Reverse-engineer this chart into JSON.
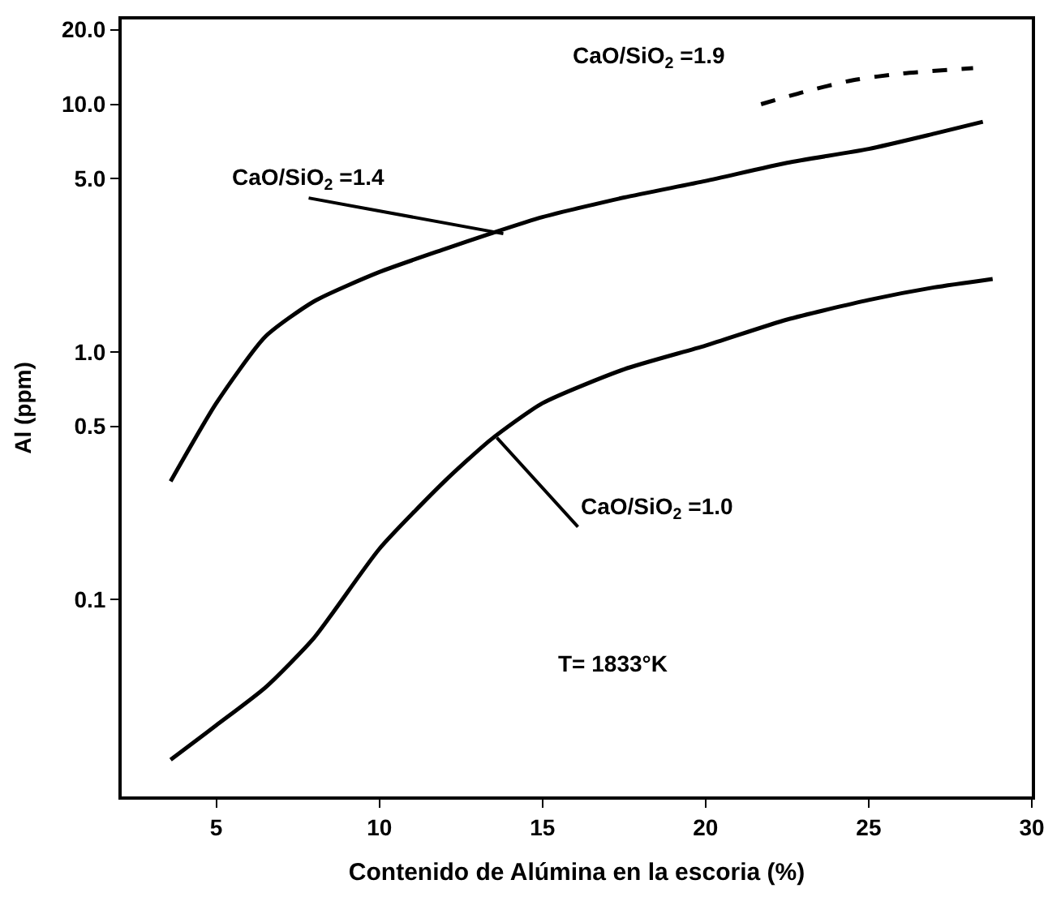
{
  "chart_data": {
    "type": "line",
    "xlabel": "Contenido de Alúmina en la escoria (%)",
    "ylabel": "Al (ppm)",
    "log": "y",
    "legend": false,
    "marker": "none",
    "xlim": [
      2.1,
      30
    ],
    "xticks": [
      5,
      10,
      15,
      20,
      25,
      30
    ],
    "ylim": [
      0.016,
      22
    ],
    "yticks": [
      0.1,
      0.5,
      {
        "value": 1,
        "label": "1.0"
      },
      {
        "value": 5,
        "label": "5.0"
      },
      {
        "value": 10,
        "label": "10.0"
      },
      {
        "value": 20,
        "label": "20.0"
      }
    ],
    "series": [
      {
        "color": "#000000",
        "line_style": "solid",
        "x": [
          3.6,
          5,
          6.5,
          8,
          10,
          12,
          13.4,
          15,
          17.5,
          20,
          22.5,
          25,
          27,
          28.8
        ],
        "values": [
          0.0225,
          0.031,
          0.044,
          0.07,
          0.16,
          0.3,
          0.44,
          0.62,
          0.85,
          1.06,
          1.35,
          1.62,
          1.82,
          1.97
        ]
      },
      {
        "color": "#000000",
        "line_style": "solid",
        "x": [
          3.6,
          5,
          6.5,
          8,
          10,
          12,
          13.4,
          15,
          17.5,
          20,
          22.5,
          25,
          27,
          28.5
        ],
        "values": [
          0.3,
          0.62,
          1.15,
          1.6,
          2.1,
          2.6,
          3.0,
          3.5,
          4.2,
          4.9,
          5.8,
          6.6,
          7.6,
          8.5
        ]
      },
      {
        "color": "#000000",
        "line_style": "dashed",
        "x": [
          21.7,
          23,
          24.5,
          26,
          28.2
        ],
        "values": [
          10,
          11.2,
          12.5,
          13.3,
          14
        ]
      }
    ],
    "annotations": [
      {
        "text": "CaO/SiO$_{2}$ =1.4",
        "x": 13.8,
        "y": 3.0
      },
      {
        "text": "CaO/SiO$_{2}$ =1.0",
        "x": 13.6,
        "y": 0.45
      },
      "CaO/SiO$_{2}$ =1.9",
      "T= 1833°K"
    ]
  }
}
